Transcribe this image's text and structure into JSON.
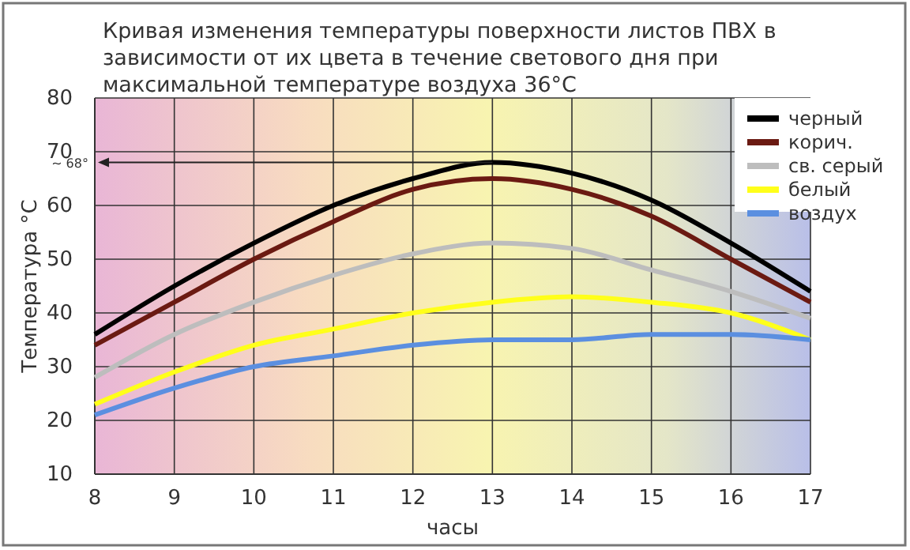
{
  "chart_data": {
    "type": "line",
    "title": "Кривая изменения температуры поверхности листов ПВХ в зависимости от их цвета в течение светового дня при максимальной температуре воздуха 36°C",
    "xlabel": "часы",
    "ylabel": "Температура °C",
    "x": [
      8,
      9,
      10,
      11,
      12,
      13,
      14,
      15,
      16,
      17
    ],
    "series": [
      {
        "name": "черный",
        "color": "#000000",
        "values": [
          36,
          45,
          53,
          60,
          65,
          68,
          66,
          61,
          53,
          44
        ]
      },
      {
        "name": "корич.",
        "color": "#6b1a12",
        "values": [
          34,
          42,
          50,
          57,
          63,
          65,
          63,
          58,
          50,
          42
        ]
      },
      {
        "name": "св. серый",
        "color": "#bdbdbd",
        "values": [
          28,
          36,
          42,
          47,
          51,
          53,
          52,
          48,
          44,
          39
        ]
      },
      {
        "name": "белый",
        "color": "#ffff1a",
        "values": [
          23,
          29,
          34,
          37,
          40,
          42,
          43,
          42,
          40,
          35
        ]
      },
      {
        "name": "воздух",
        "color": "#5b8fe0",
        "values": [
          21,
          26,
          30,
          32,
          34,
          35,
          35,
          36,
          36,
          35
        ]
      }
    ],
    "xlim": [
      8,
      17
    ],
    "xticks": [
      8,
      9,
      10,
      11,
      12,
      13,
      14,
      15,
      16,
      17
    ],
    "ylim": [
      10,
      80
    ],
    "yticks": [
      10,
      20,
      30,
      40,
      50,
      60,
      70,
      80
    ],
    "ref_lines": [
      {
        "axis": "y",
        "value": 68,
        "label": "~ 68°"
      }
    ],
    "grid": true,
    "legend": "top right",
    "marker": "none",
    "line_style": "solid"
  }
}
